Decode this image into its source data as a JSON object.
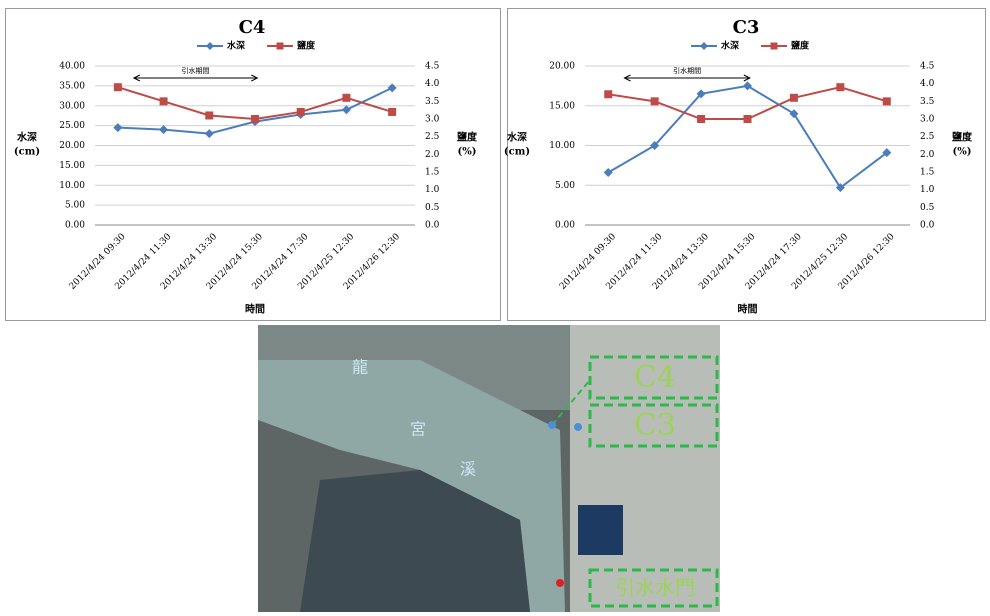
{
  "chart_data": [
    {
      "type": "line",
      "title": "C4",
      "categories": [
        "2012/4/24 09:30",
        "2012/4/24 11:30",
        "2012/4/24 13:30",
        "2012/4/24 15:30",
        "2012/4/24 17:30",
        "2012/4/25 12:30",
        "2012/4/26 12:30"
      ],
      "series": [
        {
          "name": "水深",
          "color": "#4a7ebb",
          "marker": "diamond",
          "values": [
            24.5,
            24.0,
            23.0,
            26.0,
            27.8,
            29.0,
            34.5
          ]
        },
        {
          "name": "鹽度",
          "color": "#be4b48",
          "marker": "square",
          "axis": "y2",
          "values": [
            3.9,
            3.5,
            3.1,
            3.0,
            3.2,
            3.6,
            3.2
          ]
        }
      ],
      "ylim": [
        0,
        40
      ],
      "yticks": [
        {
          "value": 0,
          "label": "0.00"
        },
        {
          "value": 5,
          "label": "5.00"
        },
        {
          "value": 10,
          "label": "10.00"
        },
        {
          "value": 15,
          "label": "15.00"
        },
        {
          "value": 20,
          "label": "20.00"
        },
        {
          "value": 25,
          "label": "25.00"
        },
        {
          "value": 30,
          "label": "30.00"
        },
        {
          "value": 35,
          "label": "35.00"
        },
        {
          "value": 40,
          "label": "40.00"
        }
      ],
      "y2lim": [
        0,
        4.5
      ],
      "y2ticks": [
        {
          "value": 0,
          "label": "0.0"
        },
        0.5,
        {
          "value": 1,
          "label": "1.0"
        },
        1.5,
        {
          "value": 2,
          "label": "2.0"
        },
        2.5,
        {
          "value": 3,
          "label": "3.0"
        },
        3.5,
        {
          "value": 4,
          "label": "4.0"
        },
        4.5
      ],
      "xlabel": "時間",
      "ylabel": [
        "水深",
        "(cm)"
      ],
      "y2label": [
        "鹽度",
        "(%)"
      ],
      "annotation": "引水期間",
      "grid": true,
      "legend": "top"
    },
    {
      "type": "line",
      "title": "C3",
      "categories": [
        "2012/4/24 09:30",
        "2012/4/24 11:30",
        "2012/4/24 13:30",
        "2012/4/24 15:30",
        "2012/4/24 17:30",
        "2012/4/25 12:30",
        "2012/4/26 12:30"
      ],
      "series": [
        {
          "name": "水深",
          "color": "#4a7ebb",
          "marker": "diamond",
          "values": [
            6.6,
            10.0,
            16.5,
            17.5,
            14.0,
            4.7,
            9.1
          ]
        },
        {
          "name": "鹽度",
          "color": "#be4b48",
          "marker": "square",
          "axis": "y2",
          "values": [
            3.7,
            3.5,
            3.0,
            3.0,
            3.6,
            3.9,
            3.5
          ]
        }
      ],
      "ylim": [
        0,
        20
      ],
      "yticks": [
        {
          "value": 0,
          "label": "0.00"
        },
        {
          "value": 5,
          "label": "5.00"
        },
        {
          "value": 10,
          "label": "10.00"
        },
        {
          "value": 15,
          "label": "15.00"
        },
        {
          "value": 20,
          "label": "20.00"
        }
      ],
      "y2lim": [
        0,
        4.5
      ],
      "y2ticks": [
        {
          "value": 0,
          "label": "0.0"
        },
        0.5,
        {
          "value": 1,
          "label": "1.0"
        },
        1.5,
        {
          "value": 2,
          "label": "2.0"
        },
        2.5,
        {
          "value": 3,
          "label": "3.0"
        },
        3.5,
        {
          "value": 4,
          "label": "4.0"
        },
        4.5
      ],
      "xlabel": "時間",
      "ylabel": [
        "水深",
        "(cm)"
      ],
      "y2label": [
        "鹽度",
        "(%)"
      ],
      "annotation": "引水期間",
      "grid": true,
      "legend": "top"
    }
  ],
  "map": {
    "river_chars": [
      "龍",
      "宮",
      "溪"
    ],
    "labels": [
      "C4",
      "C3",
      "引水水門"
    ]
  }
}
